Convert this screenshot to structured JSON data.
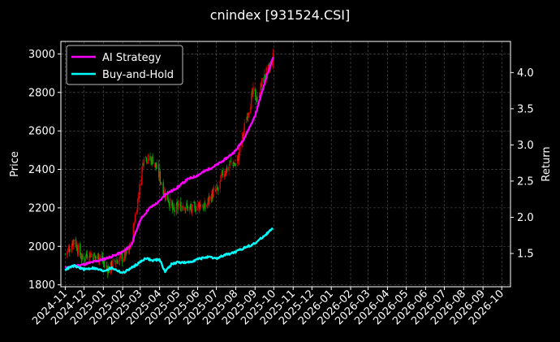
{
  "chart_data": {
    "type": "line",
    "title": "cnindex [931524.CSI]",
    "xlabel": "",
    "ylabel": "Price",
    "ylabel_right": "Return",
    "x_ticks": [
      "2024-11",
      "2024-12",
      "2025-01",
      "2025-02",
      "2025-03",
      "2025-04",
      "2025-05",
      "2025-06",
      "2025-07",
      "2025-08",
      "2025-09",
      "2025-10",
      "2025-11",
      "2025-12",
      "2026-01",
      "2026-02",
      "2026-03",
      "2026-04",
      "2026-05",
      "2026-06",
      "2026-07",
      "2026-08",
      "2026-09",
      "2026-10"
    ],
    "xlim": [
      "2024-10-25",
      "2026-10-15"
    ],
    "y_ticks": [
      1800,
      2000,
      2200,
      2400,
      2600,
      2800,
      3000
    ],
    "ylim": [
      1790,
      3065
    ],
    "y2_ticks": [
      1.5,
      2.0,
      2.5,
      3.0,
      3.5,
      4.0
    ],
    "y2lim": [
      1.04,
      4.43
    ],
    "grid": true,
    "legend_position": "top-left",
    "colors": {
      "background": "#000000",
      "ai_strategy": "#ff00ff",
      "buy_and_hold": "#00ffff",
      "candle_up": "#e00000",
      "candle_down": "#00b000"
    },
    "price_candles": {
      "note": "approx closing path of candlestick series",
      "dates": [
        "2024-11-01",
        "2024-11-08",
        "2024-11-15",
        "2024-11-22",
        "2024-11-29",
        "2024-12-06",
        "2024-12-13",
        "2024-12-20",
        "2024-12-27",
        "2025-01-03",
        "2025-01-10",
        "2025-01-17",
        "2025-01-24",
        "2025-02-07",
        "2025-02-14",
        "2025-02-21",
        "2025-02-28",
        "2025-03-07",
        "2025-03-14",
        "2025-03-21",
        "2025-03-28",
        "2025-04-03",
        "2025-04-09",
        "2025-04-16",
        "2025-04-23",
        "2025-04-30",
        "2025-05-09",
        "2025-05-16",
        "2025-05-23",
        "2025-05-30",
        "2025-06-06",
        "2025-06-13",
        "2025-06-20",
        "2025-06-27",
        "2025-07-04",
        "2025-07-11",
        "2025-07-18",
        "2025-07-25",
        "2025-08-01",
        "2025-08-08",
        "2025-08-15",
        "2025-08-22",
        "2025-08-29",
        "2025-09-05",
        "2025-09-12",
        "2025-09-19",
        "2025-09-26",
        "2025-09-30"
      ],
      "close": [
        1960,
        1990,
        2040,
        1980,
        1930,
        1960,
        1960,
        1940,
        1950,
        1900,
        1880,
        1910,
        1930,
        1960,
        2000,
        2160,
        2300,
        2480,
        2450,
        2450,
        2400,
        2340,
        2280,
        2240,
        2180,
        2200,
        2220,
        2200,
        2190,
        2210,
        2220,
        2200,
        2250,
        2280,
        2290,
        2380,
        2400,
        2440,
        2420,
        2500,
        2620,
        2720,
        2800,
        2760,
        2850,
        2900,
        2930,
        2980
      ]
    },
    "series": [
      {
        "name": "AI Strategy",
        "axis": "right",
        "dates": [
          "2024-11-01",
          "2024-11-15",
          "2024-12-01",
          "2024-12-15",
          "2025-01-01",
          "2025-01-15",
          "2025-02-01",
          "2025-02-15",
          "2025-03-01",
          "2025-03-15",
          "2025-04-01",
          "2025-04-10",
          "2025-04-20",
          "2025-05-01",
          "2025-05-15",
          "2025-06-01",
          "2025-06-15",
          "2025-07-01",
          "2025-07-15",
          "2025-08-01",
          "2025-08-15",
          "2025-09-01",
          "2025-09-15",
          "2025-09-30"
        ],
        "values": [
          1.3,
          1.32,
          1.35,
          1.38,
          1.42,
          1.46,
          1.52,
          1.62,
          1.96,
          2.12,
          2.22,
          2.32,
          2.36,
          2.42,
          2.52,
          2.58,
          2.65,
          2.72,
          2.8,
          2.92,
          3.1,
          3.4,
          3.82,
          4.22
        ]
      },
      {
        "name": "Buy-and-Hold",
        "axis": "right",
        "dates": [
          "2024-11-01",
          "2024-11-15",
          "2024-12-01",
          "2024-12-15",
          "2025-01-01",
          "2025-01-15",
          "2025-02-01",
          "2025-02-15",
          "2025-03-01",
          "2025-03-10",
          "2025-03-20",
          "2025-04-01",
          "2025-04-06",
          "2025-04-10",
          "2025-04-20",
          "2025-05-01",
          "2025-05-15",
          "2025-06-01",
          "2025-06-15",
          "2025-07-01",
          "2025-07-15",
          "2025-08-01",
          "2025-08-15",
          "2025-09-01",
          "2025-09-15",
          "2025-09-30"
        ],
        "values": [
          1.28,
          1.33,
          1.28,
          1.3,
          1.26,
          1.3,
          1.23,
          1.3,
          1.38,
          1.44,
          1.4,
          1.42,
          1.32,
          1.25,
          1.35,
          1.38,
          1.37,
          1.42,
          1.45,
          1.43,
          1.48,
          1.52,
          1.58,
          1.64,
          1.74,
          1.85
        ]
      }
    ]
  }
}
